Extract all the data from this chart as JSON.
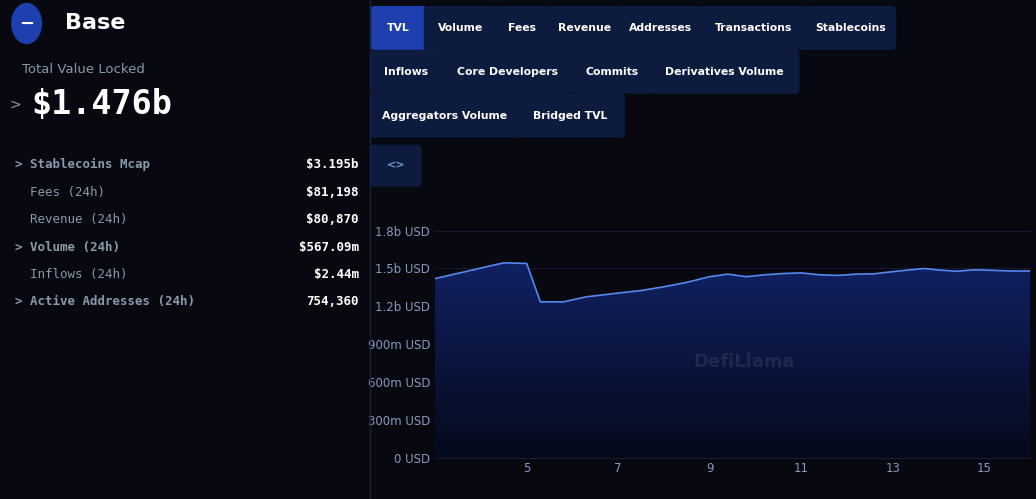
{
  "background_color": "#080810",
  "left_panel": {
    "title": "Base",
    "tvl_label": "Total Value Locked",
    "tvl_value": "$1.476b",
    "metrics": [
      {
        "label": "> Stablecoins Mcap",
        "value": "$3.195b",
        "arrow": true
      },
      {
        "label": "  Fees (24h)",
        "value": "$81,198",
        "arrow": false
      },
      {
        "label": "  Revenue (24h)",
        "value": "$80,870",
        "arrow": false
      },
      {
        "label": "> Volume (24h)",
        "value": "$567.09m",
        "arrow": true
      },
      {
        "label": "  Inflows (24h)",
        "value": "$2.44m",
        "arrow": false
      },
      {
        "label": "> Active Addresses (24h)",
        "value": "754,360",
        "arrow": true
      }
    ]
  },
  "right_panel": {
    "buttons_row1": [
      "TVL",
      "Volume",
      "Fees",
      "Revenue",
      "Addresses",
      "Transactions",
      "Stablecoins"
    ],
    "buttons_row2": [
      "Inflows",
      "Core Developers",
      "Commits",
      "Derivatives Volume"
    ],
    "buttons_row3": [
      "Aggregators Volume",
      "Bridged TVL"
    ],
    "active_button": "TVL",
    "button_bg": "#0d1b3e",
    "active_button_bg": "#1e40af",
    "button_text_color": "#ffffff",
    "chart": {
      "x_ticks": [
        5,
        7,
        9,
        11,
        13,
        15
      ],
      "y_labels": [
        "0 USD",
        "300m USD",
        "600m USD",
        "900m USD",
        "1.2b USD",
        "1.5b USD",
        "1.8b USD"
      ],
      "y_tick_vals": [
        0,
        300000000,
        600000000,
        900000000,
        1200000000,
        1500000000,
        1800000000
      ],
      "x_data": [
        3.0,
        4.5,
        5.0,
        5.3,
        5.8,
        6.3,
        7.0,
        7.5,
        8.0,
        8.5,
        9.0,
        9.4,
        9.8,
        10.2,
        10.6,
        11.0,
        11.4,
        11.8,
        12.2,
        12.6,
        13.0,
        13.4,
        13.7,
        14.0,
        14.4,
        14.8,
        15.2,
        15.6,
        16.0
      ],
      "y_data": [
        1420000000,
        1545000000,
        1540000000,
        1235000000,
        1235000000,
        1275000000,
        1305000000,
        1325000000,
        1355000000,
        1390000000,
        1435000000,
        1455000000,
        1435000000,
        1450000000,
        1460000000,
        1465000000,
        1450000000,
        1445000000,
        1455000000,
        1458000000,
        1475000000,
        1490000000,
        1500000000,
        1488000000,
        1478000000,
        1490000000,
        1485000000,
        1480000000,
        1480000000
      ],
      "line_color": "#5588ee",
      "grid_color": "#1a2040",
      "axis_label_color": "#8899bb",
      "watermark": "DefiLlama",
      "watermark_color": "#2a3a5a",
      "xlim": [
        3.0,
        16.0
      ],
      "ylim": [
        0,
        1900000000
      ]
    }
  }
}
